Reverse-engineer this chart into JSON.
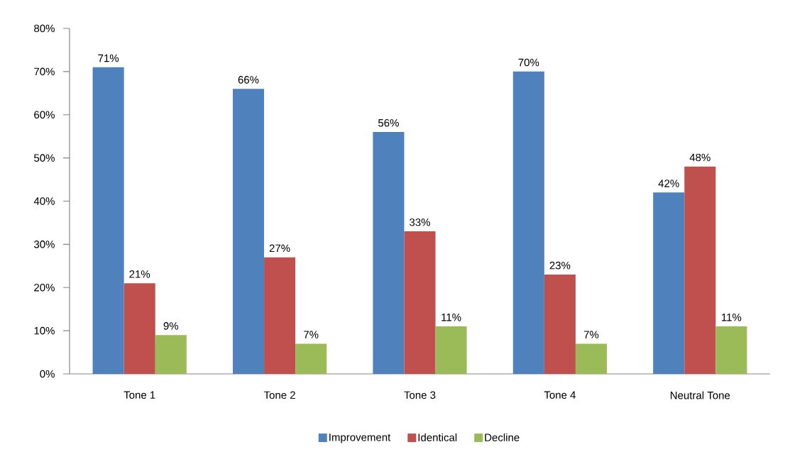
{
  "chart_data": {
    "type": "bar",
    "categories": [
      "Tone 1",
      "Tone 2",
      "Tone 3",
      "Tone 4",
      "Neutral Tone"
    ],
    "series": [
      {
        "name": "Improvement",
        "color": "#4f81bd",
        "values": [
          71,
          66,
          56,
          70,
          42
        ],
        "value_labels": [
          "71%",
          "66%",
          "56%",
          "70%",
          "42%"
        ]
      },
      {
        "name": "Identical",
        "color": "#c0504d",
        "values": [
          21,
          27,
          33,
          23,
          48
        ],
        "value_labels": [
          "21%",
          "27%",
          "33%",
          "23%",
          "48%"
        ]
      },
      {
        "name": "Decline",
        "color": "#9bbb59",
        "values": [
          9,
          7,
          11,
          7,
          11
        ],
        "value_labels": [
          "9%",
          "7%",
          "11%",
          "7%",
          "11%"
        ]
      }
    ],
    "ylim": [
      0,
      80
    ],
    "yticks": [
      {
        "value": 0,
        "label": "0%"
      },
      {
        "value": 10,
        "label": "10%"
      },
      {
        "value": 20,
        "label": "20%"
      },
      {
        "value": 30,
        "label": "30%"
      },
      {
        "value": 40,
        "label": "40%"
      },
      {
        "value": 50,
        "label": "50%"
      },
      {
        "value": 60,
        "label": "60%"
      },
      {
        "value": 70,
        "label": "70%"
      },
      {
        "value": 80,
        "label": "80%"
      }
    ],
    "legend": "bottom"
  }
}
